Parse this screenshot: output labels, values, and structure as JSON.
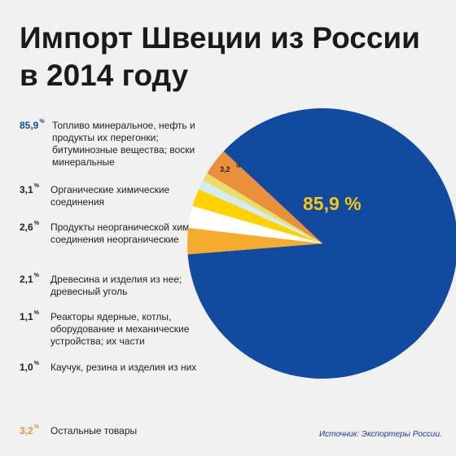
{
  "title_line1": "Импорт Швеции из России",
  "title_line2": "в 2014 году",
  "source": "Источник: Экспортеры России.",
  "colors": {
    "background": "#f1f1f1",
    "main": "#124aa0",
    "main_label": "#f4c80f",
    "others": "#e8903a"
  },
  "chart_data": {
    "type": "pie",
    "slices": [
      {
        "value": 85.9,
        "pct_label": "85,9",
        "unit": "%",
        "label": "Топливо минеральное, нефть и продукты их перегонки; битуминозные вещества; воски минеральные",
        "color": "#124aa0"
      },
      {
        "value": 3.1,
        "pct_label": "3,1",
        "unit": "%",
        "label": "Органические химические соединения",
        "color": "#f5ab2d"
      },
      {
        "value": 2.6,
        "pct_label": "2,6",
        "unit": "%",
        "label": "Продукты неорганической химии; соединения неорганические",
        "color": "#ffffff"
      },
      {
        "value": 2.1,
        "pct_label": "2,1",
        "unit": "%",
        "label": "Древесина и изделия из нее; древесный уголь",
        "color": "#ffd200"
      },
      {
        "value": 1.1,
        "pct_label": "1,1",
        "unit": "%",
        "label": "Реакторы ядерные, котлы, оборудование и механические устройства; их части",
        "color": "#d3edf4"
      },
      {
        "value": 1.0,
        "pct_label": "1,0",
        "unit": "%",
        "label": "Каучук, резина и изделия из них",
        "color": "#eddc6c"
      },
      {
        "value": 3.2,
        "pct_label": "3,2",
        "unit": "%",
        "label": "Остальные товары",
        "color": "#e8903a"
      }
    ],
    "pie_labels": {
      "main": "85,9 %",
      "others": "3,2",
      "others_unit": "%"
    }
  }
}
